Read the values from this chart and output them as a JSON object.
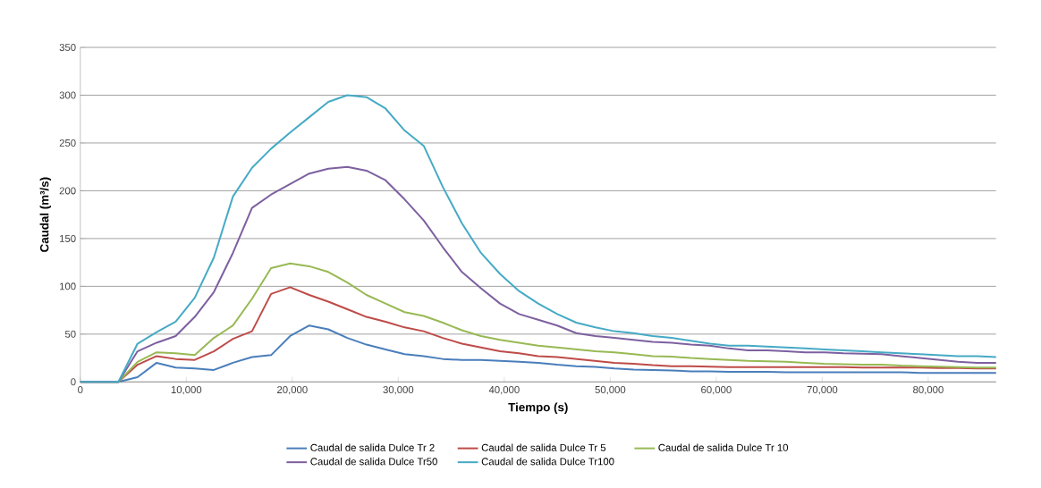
{
  "chart_data": {
    "type": "line",
    "xlabel": "Tiempo (s)",
    "ylabel": "Caudal (m³/s)",
    "x": [
      0,
      1800,
      3600,
      5400,
      7200,
      9000,
      10800,
      12600,
      14400,
      16200,
      18000,
      19800,
      21600,
      23400,
      25200,
      27000,
      28800,
      30600,
      32400,
      34200,
      36000,
      37800,
      39600,
      41400,
      43200,
      45000,
      46800,
      48600,
      50400,
      52200,
      54000,
      55800,
      57600,
      59400,
      61200,
      63000,
      64800,
      66600,
      68400,
      70200,
      72000,
      73800,
      75600,
      77400,
      79200,
      81000,
      82800,
      84600,
      86400
    ],
    "series": [
      {
        "name": "Caudal de salida Dulce Tr 2",
        "color": "#4a7ebb",
        "values": [
          0,
          0,
          0,
          5,
          20,
          15,
          14,
          12.5,
          20,
          26,
          28,
          48,
          59,
          55,
          46,
          39,
          34,
          29,
          27,
          24,
          23,
          23,
          22,
          21,
          20,
          18,
          16.5,
          15.6,
          14,
          13,
          12.5,
          12,
          11,
          11,
          10.5,
          10.5,
          10.5,
          10,
          10,
          10,
          10,
          10,
          10,
          10,
          9.5,
          9.5,
          9.5,
          9.5,
          9.5
        ]
      },
      {
        "name": "Caudal de salida Dulce Tr 5",
        "color": "#be4b48",
        "values": [
          0,
          0,
          0,
          18,
          27,
          24,
          23,
          32,
          45,
          53,
          92,
          99,
          91,
          84,
          76,
          68,
          63,
          57,
          53,
          46,
          40,
          36,
          32,
          30,
          27,
          26,
          24,
          22,
          20,
          19,
          17.5,
          16.5,
          16.5,
          16,
          15.5,
          15.5,
          15.5,
          15.5,
          15.5,
          15.5,
          15.5,
          15,
          15,
          15,
          15,
          14.5,
          14.5,
          14,
          14
        ]
      },
      {
        "name": "Caudal de salida Dulce Tr 10",
        "color": "#98b954",
        "values": [
          0,
          0,
          0,
          21,
          31,
          30,
          28,
          46,
          59,
          87,
          119,
          124,
          121,
          115,
          104,
          91,
          82,
          73,
          69,
          62,
          54,
          48,
          44,
          41,
          38,
          36,
          34,
          32,
          31,
          29,
          27,
          26.5,
          25,
          24,
          23,
          22,
          21.5,
          21,
          20,
          19,
          18.5,
          18,
          18,
          17,
          16.5,
          16,
          15.5,
          15,
          15
        ]
      },
      {
        "name": "Caudal de salida Dulce Tr50",
        "color": "#7d60a0",
        "values": [
          0,
          0,
          0,
          32,
          41,
          48,
          68,
          94,
          135,
          182,
          196,
          207,
          218,
          223,
          225,
          221,
          211,
          191,
          169,
          141,
          115,
          98,
          82,
          71,
          65,
          59,
          51,
          48,
          46,
          44,
          42,
          41,
          39,
          38,
          35,
          33,
          33,
          32,
          31,
          31,
          30,
          29.5,
          29,
          27,
          25,
          23,
          21,
          20,
          20
        ]
      },
      {
        "name": "Caudal de salida Dulce Tr100",
        "color": "#46aac5",
        "values": [
          0,
          0,
          0,
          40,
          52,
          63,
          88,
          130,
          194,
          224,
          244,
          261,
          277,
          293,
          300,
          298,
          286,
          263,
          247,
          204,
          166,
          135,
          113,
          95,
          82,
          71,
          62,
          57,
          53,
          51,
          48,
          46,
          43,
          40,
          38,
          38,
          37,
          36,
          35,
          34,
          33,
          32,
          31,
          30,
          29,
          28,
          27,
          27,
          26
        ]
      }
    ],
    "xlim": [
      0,
      86400
    ],
    "ylim": [
      0,
      350
    ],
    "xticks": [
      0,
      {
        "value": 10000,
        "label": "10,000"
      },
      {
        "value": 20000,
        "label": "20,000"
      },
      {
        "value": 30000,
        "label": "30,000"
      },
      {
        "value": 40000,
        "label": "40,000"
      },
      {
        "value": 50000,
        "label": "50,000"
      },
      {
        "value": 60000,
        "label": "60,000"
      },
      {
        "value": 70000,
        "label": "70,000"
      },
      {
        "value": 80000,
        "label": "80,000"
      }
    ],
    "yticks": [
      0,
      50,
      100,
      150,
      200,
      250,
      300,
      350
    ],
    "grid": "y",
    "legend": "bottom",
    "marker": "none",
    "line_style": "solid"
  }
}
